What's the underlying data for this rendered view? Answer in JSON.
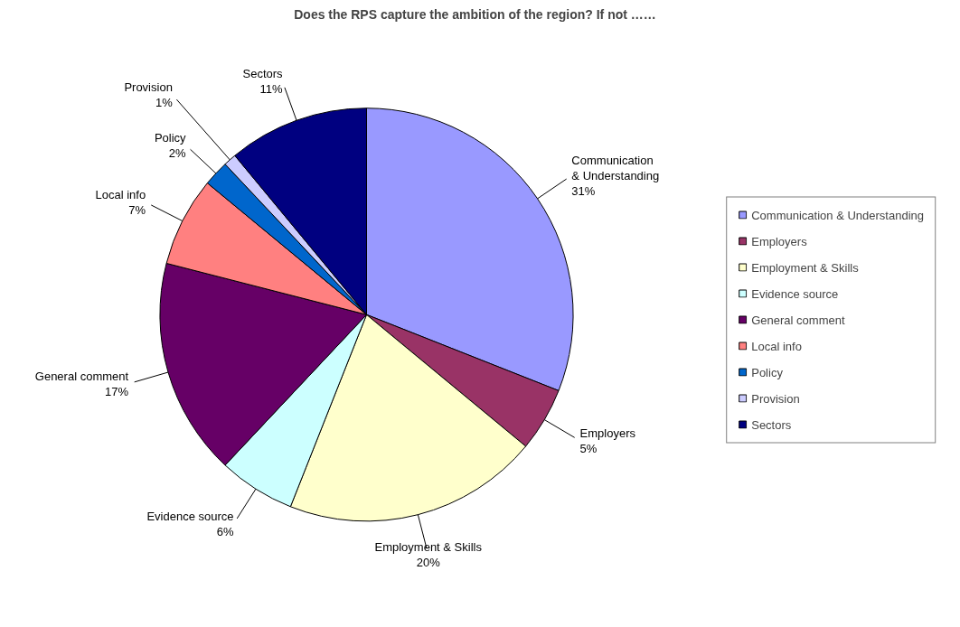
{
  "chart_data": {
    "type": "pie",
    "title": "Does the RPS capture the ambition of the region? If not ……",
    "categories": [
      "Communication & Understanding",
      "Employers",
      "Employment & Skills",
      "Evidence source",
      "General comment",
      "Local info",
      "Policy",
      "Provision",
      "Sectors"
    ],
    "values": [
      31,
      5,
      20,
      6,
      17,
      7,
      2,
      1,
      11
    ],
    "value_labels": [
      "31%",
      "5%",
      "20%",
      "6%",
      "17%",
      "7%",
      "2%",
      "1%",
      "11%"
    ],
    "colors": [
      "#9999ff",
      "#993366",
      "#ffffcc",
      "#ccffff",
      "#660066",
      "#ff8080",
      "#0066cc",
      "#ccccff",
      "#000080"
    ],
    "legend": "right"
  }
}
